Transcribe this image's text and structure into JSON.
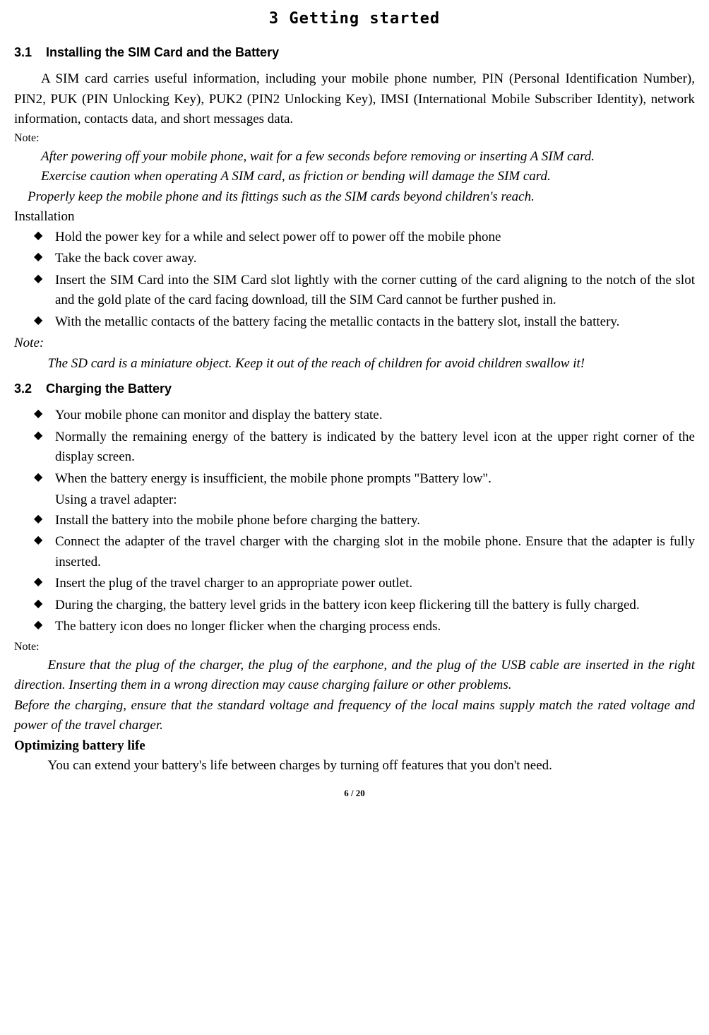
{
  "chapter_title": "3 Getting started",
  "section_3_1": {
    "number": "3.1",
    "title": "Installing the SIM Card and the Battery",
    "intro": "A SIM card carries useful information, including your mobile phone number, PIN (Personal Identification Number), PIN2, PUK (PIN Unlocking Key), PUK2 (PIN2 Unlocking Key), IMSI (International Mobile Subscriber Identity), network information, contacts data, and short messages data.",
    "note_label": "Note:",
    "note_1": "After powering off your mobile phone, wait for a few seconds before removing or inserting A SIM card.",
    "note_2": "Exercise caution when operating A SIM card, as friction or bending will damage the SIM card.",
    "note_3": "Properly keep the mobile phone and its fittings such as the SIM cards beyond children's reach.",
    "installation_label": "Installation",
    "bullets": [
      "Hold the power key for a while and select power off to power off the mobile phone",
      "Take the back cover away.",
      "Insert the SIM Card into the SIM Card slot lightly with the corner cutting of the card aligning to the notch of the slot and the gold plate of the card facing download, till the SIM Card cannot be further pushed in.",
      "With the metallic contacts of the battery facing the metallic contacts in the battery slot, install the battery."
    ],
    "note2_label": "Note:",
    "note2_text": "The SD card is a miniature object. Keep it out of the reach of children for avoid children swallow it!"
  },
  "section_3_2": {
    "number": "3.2",
    "title": "Charging the Battery",
    "bullets_a": [
      "Your mobile phone can monitor and display the battery state.",
      "Normally the remaining energy of the battery is indicated by the battery level icon at the upper right corner of the display screen.",
      "When the battery energy is insufficient, the mobile phone prompts \"Battery low\"."
    ],
    "adapter_label": "Using a travel adapter:",
    "bullets_b": [
      "Install the battery into the mobile phone before charging the battery.",
      "Connect the adapter of the travel charger with the charging slot in the mobile phone. Ensure that the adapter is fully inserted.",
      "Insert the plug of the travel charger to an appropriate power outlet.",
      "During the charging, the battery level grids in the battery icon keep flickering till the battery is fully charged.",
      "The battery icon does no longer flicker when the charging process ends."
    ],
    "note_label": "Note:",
    "note_1": "Ensure that the plug of the charger, the plug of the earphone, and the plug of the USB cable are inserted in the right direction. Inserting them in a wrong direction may cause charging failure or other problems.",
    "note_2": "Before the charging, ensure that the standard voltage and frequency of the local mains supply match the rated voltage and power of the travel charger.",
    "optimizing_label": "Optimizing battery life",
    "optimizing_text": "You can extend your battery's life between charges by turning off features that you don't need."
  },
  "page_number": "6 / 20"
}
